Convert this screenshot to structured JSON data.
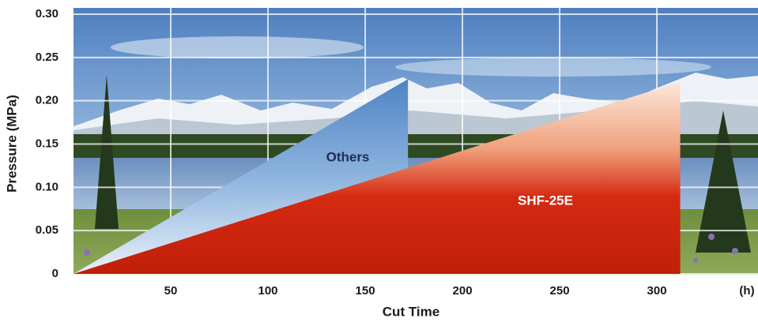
{
  "chart_data": {
    "type": "area",
    "x_label": "Cut Time",
    "x_unit": "(h)",
    "y_label": "Pressure (MPa)",
    "xlim": [
      0,
      352
    ],
    "xticks": [
      50,
      100,
      150,
      200,
      250,
      300
    ],
    "ylim": [
      0,
      0.3
    ],
    "yticks": [
      0,
      0.05,
      {
        "value": 0.1,
        "label": "0.10"
      },
      0.15,
      {
        "value": 0.2,
        "label": "0.20"
      },
      0.25,
      {
        "value": 0.3,
        "label": "0.30"
      }
    ],
    "grid": true,
    "series": [
      {
        "name": "Others",
        "color": "#8db4de",
        "x": [
          0,
          172
        ],
        "values": [
          0,
          0.225
        ]
      },
      {
        "name": "SHF-25E",
        "color": "#d42a12",
        "x": [
          0,
          312
        ],
        "values": [
          0,
          0.222
        ]
      }
    ]
  }
}
